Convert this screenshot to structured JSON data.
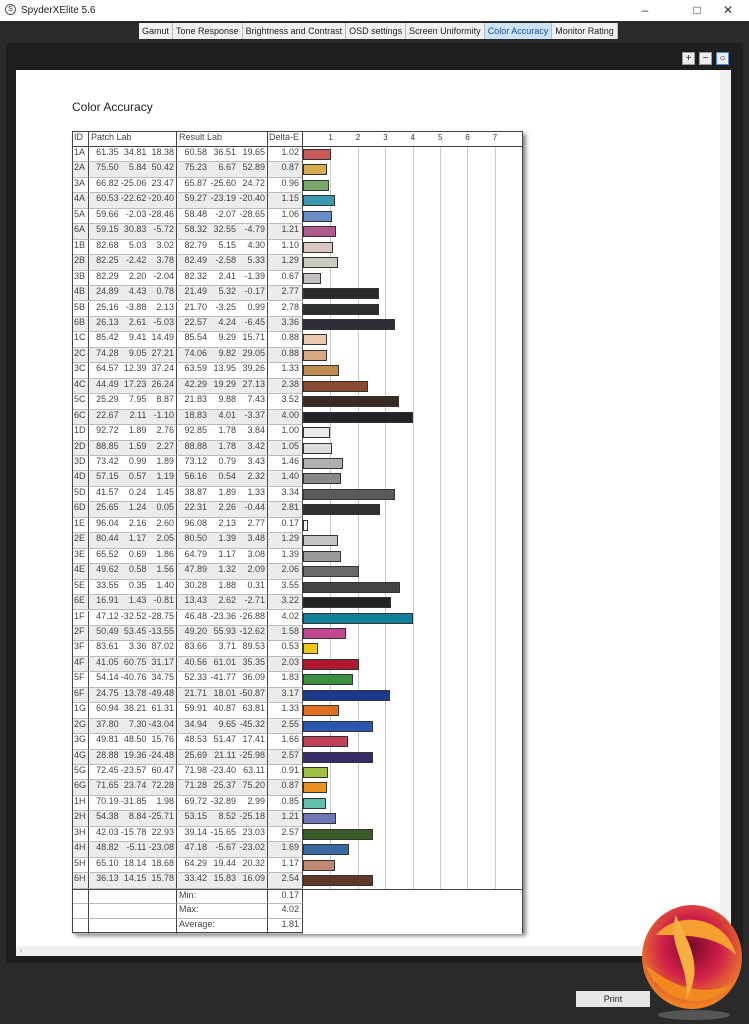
{
  "window": {
    "title": "SpyderXElite 5.6",
    "app_icon": "S"
  },
  "tabs": [
    {
      "label": "Gamut"
    },
    {
      "label": "Tone Response"
    },
    {
      "label": "Brightness and Contrast"
    },
    {
      "label": "OSD settings"
    },
    {
      "label": "Screen Uniformity"
    },
    {
      "label": "Color Accuracy",
      "active": true
    },
    {
      "label": "Monitor Rating"
    }
  ],
  "page_title": "Color Accuracy",
  "table": {
    "headers": {
      "id": "ID",
      "patch": "Patch Lab",
      "result": "Result Lab",
      "delta": "Delta-E"
    },
    "axis_ticks": [
      "1",
      "2",
      "3",
      "4",
      "5",
      "6",
      "7"
    ],
    "rows": [
      [
        "1A",
        "61.35",
        "34.81",
        "18.38",
        "60.58",
        "36.51",
        "19.65",
        "1.02",
        "#c85a5a"
      ],
      [
        "2A",
        "75.50",
        "5.84",
        "50.42",
        "75.23",
        "6.67",
        "52.89",
        "0.87",
        "#d9a94e"
      ],
      [
        "3A",
        "66.82",
        "-25.06",
        "23.47",
        "65.87",
        "-25.60",
        "24.72",
        "0.96",
        "#7aa86a"
      ],
      [
        "4A",
        "60.53",
        "-22.62",
        "-20.40",
        "59.27",
        "-23.19",
        "-20.40",
        "1.15",
        "#3a98b0"
      ],
      [
        "5A",
        "59.66",
        "-2.03",
        "-28.46",
        "58.48",
        "-2.07",
        "-28.65",
        "1.06",
        "#6a8cc4"
      ],
      [
        "6A",
        "59.15",
        "30.83",
        "-5.72",
        "58.32",
        "32.55",
        "-4.79",
        "1.21",
        "#b05a90"
      ],
      [
        "1B",
        "82.68",
        "5.03",
        "3.02",
        "82.79",
        "5.15",
        "4.30",
        "1.10",
        "#d8c8c0"
      ],
      [
        "2B",
        "82.25",
        "-2.42",
        "3.78",
        "82.49",
        "-2.58",
        "5.33",
        "1.29",
        "#c8ccc0"
      ],
      [
        "3B",
        "82.29",
        "2.20",
        "-2.04",
        "82.32",
        "2.41",
        "-1.39",
        "0.67",
        "#c4c0c4"
      ],
      [
        "4B",
        "24.89",
        "4.43",
        "0.78",
        "21.49",
        "5.32",
        "-0.17",
        "2.77",
        "#2a2a2a"
      ],
      [
        "5B",
        "25.16",
        "-3.88",
        "2.13",
        "21.70",
        "-3.25",
        "0.99",
        "2.78",
        "#2c302c"
      ],
      [
        "6B",
        "26.13",
        "2.61",
        "-5.03",
        "22.57",
        "4.24",
        "-6.45",
        "3.36",
        "#2c2c36"
      ],
      [
        "1C",
        "85.42",
        "9.41",
        "14.49",
        "85.54",
        "9.29",
        "15.71",
        "0.88",
        "#ecc8b0"
      ],
      [
        "2C",
        "74.28",
        "9.05",
        "27.21",
        "74.06",
        "9.82",
        "29.05",
        "0.88",
        "#d8a882"
      ],
      [
        "3C",
        "64.57",
        "12.39",
        "37.24",
        "63.59",
        "13.95",
        "39.26",
        "1.33",
        "#c08a50"
      ],
      [
        "4C",
        "44.49",
        "17.23",
        "26.24",
        "42.29",
        "19.29",
        "27.13",
        "2.38",
        "#8a4a30"
      ],
      [
        "5C",
        "25.29",
        "7.95",
        "8.87",
        "21.83",
        "9.88",
        "7.43",
        "3.52",
        "#3a2a24"
      ],
      [
        "6C",
        "22.67",
        "2.11",
        "-1.10",
        "18.83",
        "4.01",
        "-3.37",
        "4.00",
        "#222228"
      ],
      [
        "1D",
        "92.72",
        "1.89",
        "2.76",
        "92.85",
        "1.78",
        "3.84",
        "1.00",
        "#ececec"
      ],
      [
        "2D",
        "88.85",
        "1.59",
        "2.27",
        "88.88",
        "1.78",
        "3.42",
        "1.05",
        "#dcdcdc"
      ],
      [
        "3D",
        "73.42",
        "0.99",
        "1.89",
        "73.12",
        "0.79",
        "3.43",
        "1.46",
        "#b0b0b0"
      ],
      [
        "4D",
        "57.15",
        "0.57",
        "1.19",
        "56.16",
        "0.54",
        "2.32",
        "1.40",
        "#8a8a8a"
      ],
      [
        "5D",
        "41.57",
        "0.24",
        "1.45",
        "38.87",
        "1.89",
        "1.33",
        "3.34",
        "#5a5a5a"
      ],
      [
        "6D",
        "25.65",
        "1.24",
        "0.05",
        "22.31",
        "2.26",
        "-0.44",
        "2.81",
        "#303030"
      ],
      [
        "1E",
        "96.04",
        "2.16",
        "2.60",
        "96.08",
        "2.13",
        "2.77",
        "0.17",
        "#f4f4f4"
      ],
      [
        "2E",
        "80.44",
        "1.17",
        "2.05",
        "80.50",
        "1.39",
        "3.48",
        "1.29",
        "#c4c4c4"
      ],
      [
        "3E",
        "65.52",
        "0.69",
        "1.86",
        "64.79",
        "1.17",
        "3.08",
        "1.39",
        "#9a9a9a"
      ],
      [
        "4E",
        "49.62",
        "0.58",
        "1.56",
        "47.89",
        "1.32",
        "2.09",
        "2.06",
        "#6a6a6a"
      ],
      [
        "5E",
        "33.55",
        "0.35",
        "1.40",
        "30.28",
        "1.88",
        "0.31",
        "3.55",
        "#444444"
      ],
      [
        "6E",
        "16.91",
        "1.43",
        "-0.81",
        "13.43",
        "2.62",
        "-2.71",
        "3.22",
        "#222222"
      ],
      [
        "1F",
        "47.12",
        "-32.52",
        "-28.75",
        "46.48",
        "-23.36",
        "-26.88",
        "4.02",
        "#10809a"
      ],
      [
        "2F",
        "50.49",
        "53.45",
        "-13.55",
        "49.20",
        "55.93",
        "-12.62",
        "1.58",
        "#c04890"
      ],
      [
        "3F",
        "83.61",
        "3.36",
        "87.02",
        "83.66",
        "3.71",
        "89.53",
        "0.53",
        "#f0c818"
      ],
      [
        "4F",
        "41.05",
        "60.75",
        "31.17",
        "40.56",
        "61.01",
        "35.35",
        "2.03",
        "#b01830"
      ],
      [
        "5F",
        "54.14",
        "-40.76",
        "34.75",
        "52.33",
        "-41.77",
        "36.09",
        "1.83",
        "#3a9040"
      ],
      [
        "6F",
        "24.75",
        "13.78",
        "-49.48",
        "21.71",
        "18.01",
        "-50.87",
        "3.17",
        "#1a3a8a"
      ],
      [
        "1G",
        "60.94",
        "38.21",
        "61.31",
        "59.91",
        "40.87",
        "63.81",
        "1.33",
        "#e07020"
      ],
      [
        "2G",
        "37.80",
        "7.30",
        "-43.04",
        "34.94",
        "9.65",
        "-45.32",
        "2.55",
        "#2a58b0"
      ],
      [
        "3G",
        "49.81",
        "48.50",
        "15.76",
        "48.53",
        "51.47",
        "17.41",
        "1.66",
        "#c04058"
      ],
      [
        "4G",
        "28.88",
        "19.36",
        "-24.48",
        "25.69",
        "21.11",
        "-25.98",
        "2.57",
        "#3a2a6a"
      ],
      [
        "5G",
        "72.45",
        "-23.57",
        "60.47",
        "71.98",
        "-23.40",
        "63.11",
        "0.91",
        "#a0c040"
      ],
      [
        "6G",
        "71.65",
        "23.74",
        "72.28",
        "71.28",
        "25.37",
        "75.20",
        "0.87",
        "#e89020"
      ],
      [
        "1H",
        "70.19",
        "-31.85",
        "1.98",
        "69.72",
        "-32.89",
        "2.99",
        "0.85",
        "#60c0a8"
      ],
      [
        "2H",
        "54.38",
        "8.84",
        "-25.71",
        "53.15",
        "8.52",
        "-25.18",
        "1.21",
        "#7078b8"
      ],
      [
        "3H",
        "42.03",
        "-15.78",
        "22.93",
        "39.14",
        "-15.65",
        "23.03",
        "2.57",
        "#3a5a28"
      ],
      [
        "4H",
        "48.82",
        "-5.11",
        "-23.08",
        "47.18",
        "-5.67",
        "-23.02",
        "1.69",
        "#3a6aa0"
      ],
      [
        "5H",
        "65.10",
        "18.14",
        "18.68",
        "64.29",
        "19.44",
        "20.32",
        "1.17",
        "#c08870"
      ],
      [
        "6H",
        "36.13",
        "14.15",
        "15.78",
        "33.42",
        "15.83",
        "16.09",
        "2.54",
        "#603828"
      ]
    ],
    "summary": [
      {
        "label": "Min:",
        "value": "0.17"
      },
      {
        "label": "Max:",
        "value": "4.02"
      },
      {
        "label": "Average:",
        "value": "1.81"
      }
    ]
  },
  "zoom_icons": [
    "zoom-in-icon",
    "zoom-out-icon",
    "zoom-fit-icon"
  ],
  "print_label": "Print"
}
